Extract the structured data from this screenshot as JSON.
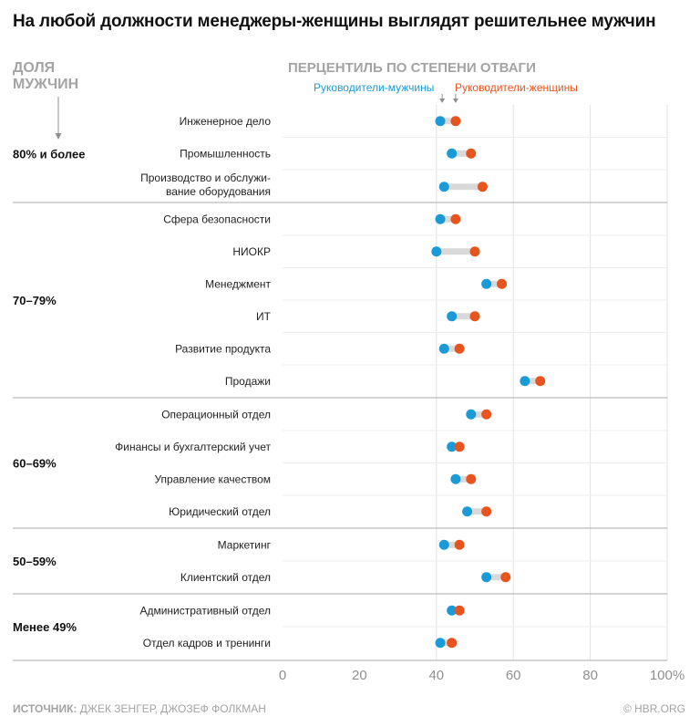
{
  "title": "На любой должности менеджеры-женщины выглядят решительнее мужчин",
  "share_header": "ДОЛЯ МУЖЧИН",
  "percentile_header": "ПЕРЦЕНТИЛЬ ПО СТЕПЕНИ ОТВАГИ",
  "footer": {
    "source_label": "ИСТОЧНИК:",
    "source_text": "ДЖЕК ЗЕНГЕР, ДЖОЗЕФ ФОЛКМАН",
    "brand": "© HBR.ORG"
  },
  "colors": {
    "male": "#1a9ad6",
    "female": "#e8541e",
    "connector": "#d9d9d9",
    "grid": "#e3e3e3",
    "separator": "#a8a8a8"
  },
  "chart_data": {
    "type": "dot-range",
    "title": "На любой должности менеджеры-женщины выглядят решительнее мужчин",
    "xlabel": "ПЕРЦЕНТИЛЬ ПО СТЕПЕНИ ОТВАГИ",
    "xlim": [
      0,
      100
    ],
    "xticks": [
      "0",
      "20",
      "40",
      "60",
      "80",
      "100%"
    ],
    "series": [
      {
        "name": "Руководители-мужчины",
        "key": "male",
        "color": "#1a9ad6"
      },
      {
        "name": "Руководители-женщины",
        "key": "female",
        "color": "#e8541e"
      }
    ],
    "groups": [
      {
        "label": "80% и более",
        "rows": [
          {
            "label": [
              "Инженерное дело"
            ],
            "male": 41,
            "female": 45
          },
          {
            "label": [
              "Промышленность"
            ],
            "male": 44,
            "female": 49
          },
          {
            "label": [
              "Производство и обслужи-",
              "вание оборудования"
            ],
            "male": 42,
            "female": 52
          }
        ]
      },
      {
        "label": "70–79%",
        "rows": [
          {
            "label": [
              "Сфера безопасности"
            ],
            "male": 41,
            "female": 45
          },
          {
            "label": [
              "НИОКР"
            ],
            "male": 40,
            "female": 50
          },
          {
            "label": [
              "Менеджмент"
            ],
            "male": 53,
            "female": 57
          },
          {
            "label": [
              "ИТ"
            ],
            "male": 44,
            "female": 50
          },
          {
            "label": [
              "Развитие продукта"
            ],
            "male": 42,
            "female": 46
          },
          {
            "label": [
              "Продажи"
            ],
            "male": 63,
            "female": 67
          }
        ]
      },
      {
        "label": "60–69%",
        "rows": [
          {
            "label": [
              "Операционный отдел"
            ],
            "male": 49,
            "female": 53
          },
          {
            "label": [
              "Финансы и бухгалтерский учет"
            ],
            "male": 44,
            "female": 46
          },
          {
            "label": [
              "Управление качеством"
            ],
            "male": 45,
            "female": 49
          },
          {
            "label": [
              "Юридический отдел"
            ],
            "male": 48,
            "female": 53
          }
        ]
      },
      {
        "label": "50–59%",
        "rows": [
          {
            "label": [
              "Маркетинг"
            ],
            "male": 42,
            "female": 46
          },
          {
            "label": [
              "Клиентский отдел"
            ],
            "male": 53,
            "female": 58
          }
        ]
      },
      {
        "label": "Менее 49%",
        "rows": [
          {
            "label": [
              "Административный отдел"
            ],
            "male": 44,
            "female": 46
          },
          {
            "label": [
              "Отдел кадров и тренинги"
            ],
            "male": 41,
            "female": 44
          }
        ]
      }
    ]
  }
}
